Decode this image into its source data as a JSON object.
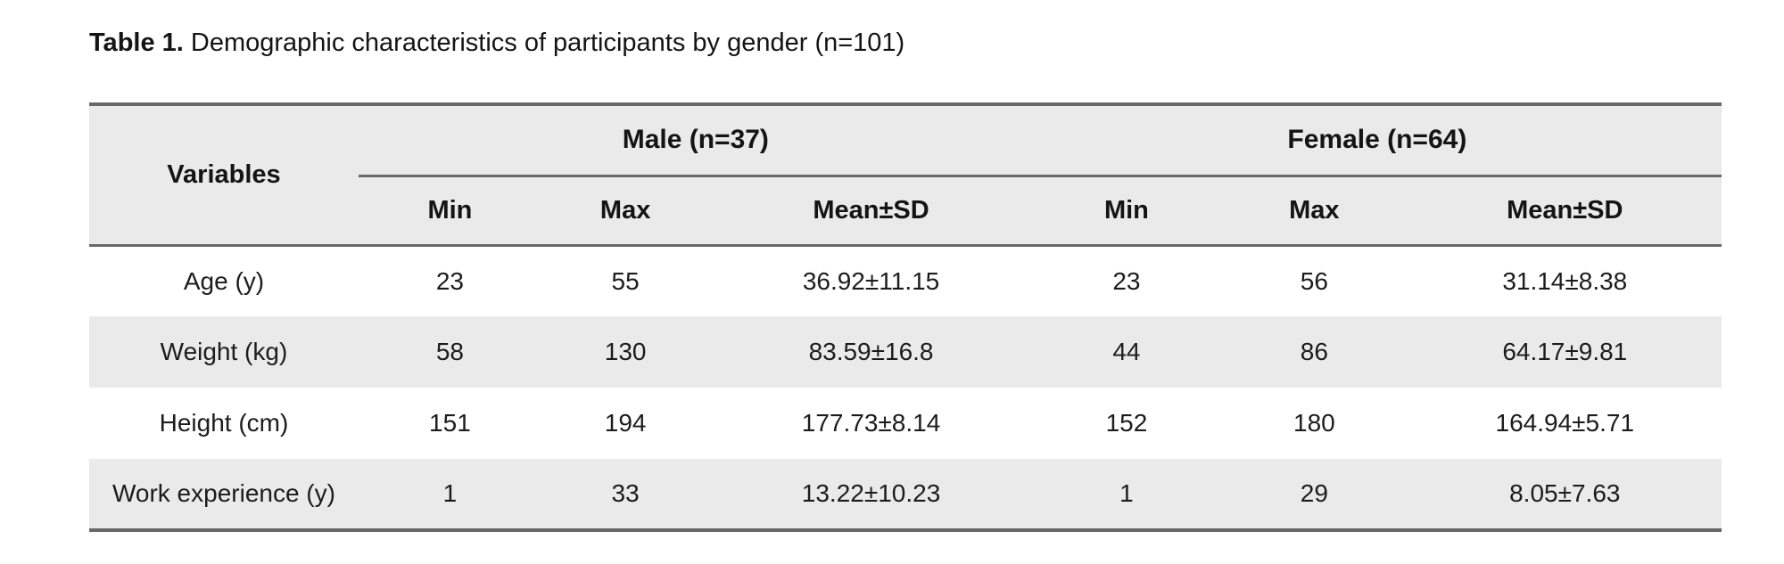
{
  "caption": {
    "label": "Table 1.",
    "text": " Demographic characteristics of participants by gender (n=101)"
  },
  "table": {
    "corner_header": "Variables",
    "groups": [
      {
        "label": "Male (n=37)",
        "subheaders": [
          "Min",
          "Max",
          "Mean±SD"
        ]
      },
      {
        "label": "Female (n=64)",
        "subheaders": [
          "Min",
          "Max",
          "Mean±SD"
        ]
      }
    ],
    "rows": [
      {
        "variable": "Age (y)",
        "male": {
          "min": "23",
          "max": "55",
          "mean_sd": "36.92±11.15"
        },
        "female": {
          "min": "23",
          "max": "56",
          "mean_sd": "31.14±8.38"
        }
      },
      {
        "variable": "Weight (kg)",
        "male": {
          "min": "58",
          "max": "130",
          "mean_sd": "83.59±16.8"
        },
        "female": {
          "min": "44",
          "max": "86",
          "mean_sd": "64.17±9.81"
        }
      },
      {
        "variable": "Height (cm)",
        "male": {
          "min": "151",
          "max": "194",
          "mean_sd": "177.73±8.14"
        },
        "female": {
          "min": "152",
          "max": "180",
          "mean_sd": "164.94±5.71"
        }
      },
      {
        "variable": "Work experience (y)",
        "male": {
          "min": "1",
          "max": "33",
          "mean_sd": "13.22±10.23"
        },
        "female": {
          "min": "1",
          "max": "29",
          "mean_sd": "8.05±7.63"
        }
      }
    ],
    "colors": {
      "shaded_row": "#eaeaea",
      "border": "#686868",
      "text": "#1c1c1c",
      "background": "#ffffff"
    }
  }
}
